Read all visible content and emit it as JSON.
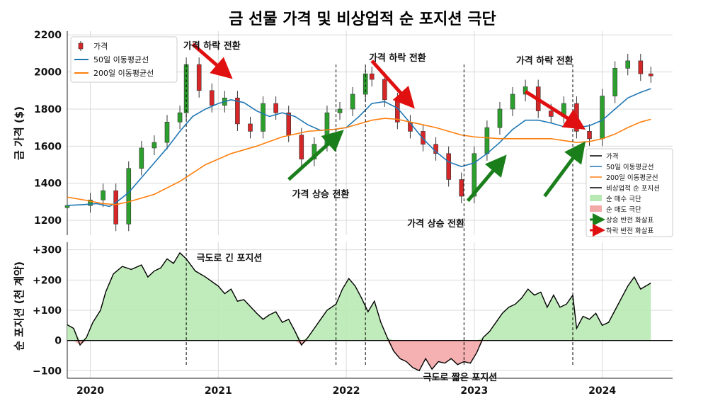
{
  "chart_data": {
    "type": "line",
    "title": "금 선물 가격 및 비상업적 순 포지션 극단",
    "x_ticks": [
      "2020",
      "2021",
      "2022",
      "2023",
      "2024"
    ],
    "top_panel": {
      "ylabel": "금 가격 ($)",
      "ylim": [
        1120,
        2220
      ],
      "yticks": [
        1200,
        1400,
        1600,
        1800,
        2000,
        2200
      ],
      "series": [
        {
          "name": "가격",
          "type": "candlestick",
          "color_up": "#2ca02c",
          "color_down": "#d62728",
          "x": [
            2019.82,
            2020.0,
            2020.1,
            2020.2,
            2020.3,
            2020.4,
            2020.5,
            2020.6,
            2020.7,
            2020.75,
            2020.85,
            2020.95,
            2021.05,
            2021.15,
            2021.25,
            2021.35,
            2021.45,
            2021.55,
            2021.65,
            2021.75,
            2021.85,
            2021.95,
            2022.05,
            2022.15,
            2022.2,
            2022.3,
            2022.4,
            2022.5,
            2022.6,
            2022.7,
            2022.8,
            2022.9,
            2023.0,
            2023.1,
            2023.2,
            2023.3,
            2023.4,
            2023.5,
            2023.6,
            2023.7,
            2023.8,
            2023.9,
            2024.0,
            2024.1,
            2024.2,
            2024.3,
            2024.38
          ],
          "y": [
            1280,
            1310,
            1360,
            1180,
            1480,
            1590,
            1620,
            1730,
            1780,
            2040,
            1900,
            1820,
            1860,
            1720,
            1680,
            1830,
            1780,
            1660,
            1530,
            1610,
            1780,
            1800,
            1880,
            1990,
            1960,
            1850,
            1730,
            1680,
            1610,
            1560,
            1420,
            1330,
            1560,
            1700,
            1800,
            1880,
            1920,
            1790,
            1760,
            1830,
            1680,
            1640,
            1870,
            2020,
            2060,
            1990,
            1980
          ]
        },
        {
          "name": "50일 이동평균선",
          "color": "#1f77b4",
          "x": [
            2019.82,
            2019.95,
            2020.05,
            2020.15,
            2020.2,
            2020.3,
            2020.4,
            2020.5,
            2020.6,
            2020.7,
            2020.8,
            2020.9,
            2021.0,
            2021.1,
            2021.2,
            2021.3,
            2021.4,
            2021.5,
            2021.6,
            2021.7,
            2021.8,
            2021.9,
            2022.0,
            2022.1,
            2022.2,
            2022.3,
            2022.4,
            2022.5,
            2022.6,
            2022.7,
            2022.8,
            2022.9,
            2023.0,
            2023.1,
            2023.2,
            2023.3,
            2023.4,
            2023.5,
            2023.6,
            2023.7,
            2023.8,
            2023.9,
            2024.0,
            2024.1,
            2024.2,
            2024.3,
            2024.38
          ],
          "y": [
            1280,
            1285,
            1290,
            1275,
            1295,
            1350,
            1430,
            1510,
            1590,
            1680,
            1760,
            1800,
            1830,
            1850,
            1835,
            1790,
            1760,
            1780,
            1760,
            1715,
            1685,
            1690,
            1700,
            1760,
            1830,
            1840,
            1805,
            1725,
            1640,
            1570,
            1515,
            1490,
            1510,
            1560,
            1620,
            1690,
            1740,
            1740,
            1725,
            1705,
            1700,
            1710,
            1740,
            1800,
            1860,
            1890,
            1910
          ]
        },
        {
          "name": "200일 이동평균선",
          "color": "#ff7f0e",
          "x": [
            2019.82,
            2019.95,
            2020.1,
            2020.2,
            2020.3,
            2020.5,
            2020.7,
            2020.9,
            2021.1,
            2021.3,
            2021.5,
            2021.7,
            2021.9,
            2022.0,
            2022.1,
            2022.2,
            2022.3,
            2022.4,
            2022.5,
            2022.6,
            2022.7,
            2022.8,
            2022.9,
            2023.0,
            2023.2,
            2023.4,
            2023.6,
            2023.8,
            2023.9,
            2024.0,
            2024.1,
            2024.2,
            2024.3,
            2024.38
          ],
          "y": [
            1325,
            1310,
            1290,
            1285,
            1300,
            1340,
            1410,
            1500,
            1560,
            1600,
            1650,
            1680,
            1690,
            1700,
            1720,
            1740,
            1750,
            1745,
            1730,
            1715,
            1700,
            1680,
            1660,
            1650,
            1640,
            1640,
            1640,
            1620,
            1625,
            1640,
            1665,
            1700,
            1730,
            1745
          ]
        }
      ],
      "annotations": [
        {
          "text": "가격 하락 전환",
          "x": 2020.95,
          "y": 2125
        },
        {
          "text": "가격 하락 전환",
          "x": 2022.4,
          "y": 2060
        },
        {
          "text": "가격 하락 전환",
          "x": 2023.55,
          "y": 2045
        },
        {
          "text": "가격 상승 전환",
          "x": 2021.8,
          "y": 1325
        },
        {
          "text": "가격 상승 전환",
          "x": 2022.7,
          "y": 1165
        }
      ],
      "arrows": [
        {
          "type": "down",
          "from": [
            2020.8,
            2150
          ],
          "to": [
            2021.05,
            2000
          ]
        },
        {
          "type": "down",
          "from": [
            2022.2,
            2060
          ],
          "to": [
            2022.48,
            1845
          ]
        },
        {
          "type": "down",
          "from": [
            2023.4,
            1895
          ],
          "to": [
            2023.8,
            1720
          ]
        },
        {
          "type": "up",
          "from": [
            2021.55,
            1420
          ],
          "to": [
            2021.92,
            1650
          ]
        },
        {
          "type": "up",
          "from": [
            2022.95,
            1305
          ],
          "to": [
            2023.2,
            1510
          ]
        },
        {
          "type": "up",
          "from": [
            2023.55,
            1330
          ],
          "to": [
            2023.82,
            1580
          ]
        }
      ]
    },
    "bottom_panel": {
      "ylabel": "순 포지션 (천 계약)",
      "ylim": [
        -125,
        325
      ],
      "yticks": [
        300,
        200,
        100,
        0,
        -100
      ],
      "ytick_labels": [
        "+300",
        "+200",
        "+100",
        "0",
        "−100"
      ],
      "series": [
        {
          "name": "비상업적 순 포지션",
          "color": "#000000",
          "x": [
            2019.82,
            2019.87,
            2019.92,
            2019.97,
            2020.02,
            2020.08,
            2020.12,
            2020.18,
            2020.25,
            2020.32,
            2020.4,
            2020.45,
            2020.5,
            2020.55,
            2020.6,
            2020.65,
            2020.7,
            2020.75,
            2020.82,
            2020.9,
            2021.0,
            2021.05,
            2021.1,
            2021.15,
            2021.2,
            2021.3,
            2021.35,
            2021.4,
            2021.45,
            2021.5,
            2021.55,
            2021.6,
            2021.65,
            2021.7,
            2021.75,
            2021.8,
            2021.85,
            2021.92,
            2021.97,
            2022.02,
            2022.07,
            2022.12,
            2022.17,
            2022.22,
            2022.27,
            2022.32,
            2022.37,
            2022.42,
            2022.47,
            2022.52,
            2022.57,
            2022.62,
            2022.67,
            2022.72,
            2022.77,
            2022.82,
            2022.87,
            2022.92,
            2022.97,
            2023.02,
            2023.07,
            2023.12,
            2023.17,
            2023.22,
            2023.27,
            2023.32,
            2023.37,
            2023.42,
            2023.47,
            2023.52,
            2023.57,
            2023.62,
            2023.67,
            2023.72,
            2023.77,
            2023.8,
            2023.85,
            2023.9,
            2023.95,
            2024.0,
            2024.05,
            2024.1,
            2024.15,
            2024.2,
            2024.25,
            2024.3,
            2024.38
          ],
          "y": [
            52,
            40,
            -15,
            10,
            60,
            100,
            160,
            220,
            245,
            235,
            250,
            210,
            230,
            240,
            270,
            255,
            290,
            270,
            230,
            210,
            180,
            155,
            170,
            130,
            135,
            90,
            70,
            85,
            95,
            60,
            70,
            30,
            -15,
            10,
            40,
            70,
            100,
            120,
            170,
            205,
            180,
            140,
            95,
            130,
            60,
            10,
            -35,
            -60,
            -70,
            -90,
            -100,
            -60,
            -95,
            -70,
            -75,
            -60,
            -80,
            -70,
            -75,
            -40,
            10,
            30,
            60,
            90,
            110,
            120,
            140,
            170,
            150,
            160,
            110,
            150,
            110,
            120,
            150,
            40,
            80,
            70,
            90,
            50,
            60,
            100,
            140,
            180,
            210,
            170,
            190
          ]
        }
      ],
      "fill_buy_label": "순 매수 극단",
      "fill_sell_label": "순 매도 극단",
      "annotations": [
        {
          "text": "극도로 긴 포지션",
          "x": 2020.83,
          "y": 275
        },
        {
          "text": "극도로 짧은 포지션",
          "x": 2022.6,
          "y": -120
        }
      ]
    },
    "vlines_x": [
      2020.75,
      2021.92,
      2022.15,
      2022.92,
      2023.77
    ],
    "legend_top": [
      {
        "label": "가격",
        "kind": "candle"
      },
      {
        "label": "50일 이동평균선",
        "kind": "line",
        "color": "#1f77b4"
      },
      {
        "label": "200일 이동평균선",
        "kind": "line",
        "color": "#ff7f0e"
      }
    ],
    "legend_right": [
      {
        "label": "가격",
        "kind": "line",
        "color": "#000000"
      },
      {
        "label": "50일 이동평균선",
        "kind": "line",
        "color": "#1f77b4"
      },
      {
        "label": "200일 이동평균선",
        "kind": "line",
        "color": "#ff7f0e"
      },
      {
        "label": "비상업적 순 포지션",
        "kind": "line",
        "color": "#000000"
      },
      {
        "label": "순 매수 극단",
        "kind": "patch",
        "color": "#b9e9b3"
      },
      {
        "label": "순 매도 극단",
        "kind": "patch",
        "color": "#f4a9a9"
      },
      {
        "label": "상승 반전 화살표",
        "kind": "arrow",
        "color": "#1a7f1a"
      },
      {
        "label": "하락 반전 화살표",
        "kind": "arrow",
        "color": "#e01010"
      }
    ]
  }
}
